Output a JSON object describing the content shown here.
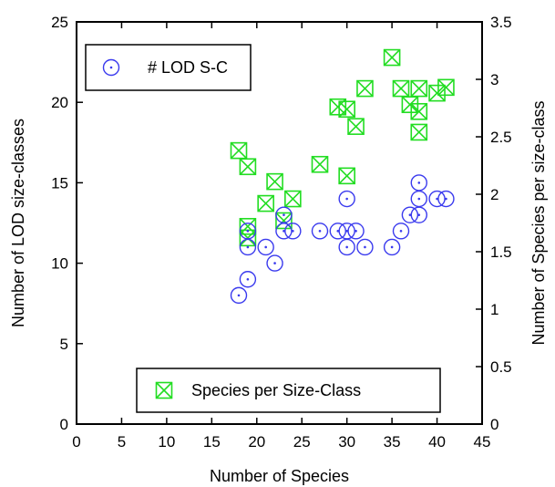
{
  "chart_data": {
    "type": "scatter",
    "xlabel": "Number of Species",
    "ylabel": "Number of LOD size-classes",
    "y2label": "Number of Species per size-class",
    "xlim": [
      0,
      45
    ],
    "ylim": [
      0,
      25
    ],
    "y2lim": [
      0,
      3.5
    ],
    "xticks": [
      "0",
      "5",
      "10",
      "15",
      "20",
      "25",
      "30",
      "35",
      "40",
      "45"
    ],
    "yticks": [
      "0",
      "5",
      "10",
      "15",
      "20",
      "25"
    ],
    "y2ticks": [
      "0",
      "0.5",
      "1",
      "1.5",
      "2",
      "2.5",
      "3",
      "3.5"
    ],
    "grid": false,
    "series": [
      {
        "name": "# LOD S-C",
        "axis": "left",
        "marker": "circle",
        "color": "#3a3aee",
        "points": [
          [
            18,
            8
          ],
          [
            19,
            9
          ],
          [
            19,
            11
          ],
          [
            19,
            12
          ],
          [
            21,
            11
          ],
          [
            22,
            10
          ],
          [
            23,
            13
          ],
          [
            23,
            12
          ],
          [
            24,
            12
          ],
          [
            27,
            12
          ],
          [
            29,
            12
          ],
          [
            30,
            14
          ],
          [
            30,
            12
          ],
          [
            30,
            11
          ],
          [
            31,
            12
          ],
          [
            32,
            11
          ],
          [
            35,
            11
          ],
          [
            36,
            12
          ],
          [
            37,
            13
          ],
          [
            38,
            13
          ],
          [
            38,
            14
          ],
          [
            38,
            15
          ],
          [
            40,
            14
          ],
          [
            41,
            14
          ]
        ]
      },
      {
        "name": "Species per Size-Class",
        "axis": "right",
        "marker": "x-box",
        "color": "#22dd22",
        "points": [
          [
            18,
            2.38
          ],
          [
            19,
            2.24
          ],
          [
            19,
            1.72
          ],
          [
            19,
            1.62
          ],
          [
            21,
            1.92
          ],
          [
            22,
            2.11
          ],
          [
            23,
            1.77
          ],
          [
            24,
            1.96
          ],
          [
            27,
            2.26
          ],
          [
            29,
            2.76
          ],
          [
            30,
            2.74
          ],
          [
            30,
            2.16
          ],
          [
            31,
            2.59
          ],
          [
            32,
            2.92
          ],
          [
            35,
            3.19
          ],
          [
            36,
            2.92
          ],
          [
            37,
            2.78
          ],
          [
            38,
            2.92
          ],
          [
            38,
            2.72
          ],
          [
            38,
            2.54
          ],
          [
            40,
            2.88
          ],
          [
            41,
            2.93
          ]
        ]
      }
    ],
    "legends": [
      {
        "series": "# LOD S-C",
        "placement": "top-left"
      },
      {
        "series": "Species per Size-Class",
        "placement": "bottom-right"
      }
    ]
  }
}
